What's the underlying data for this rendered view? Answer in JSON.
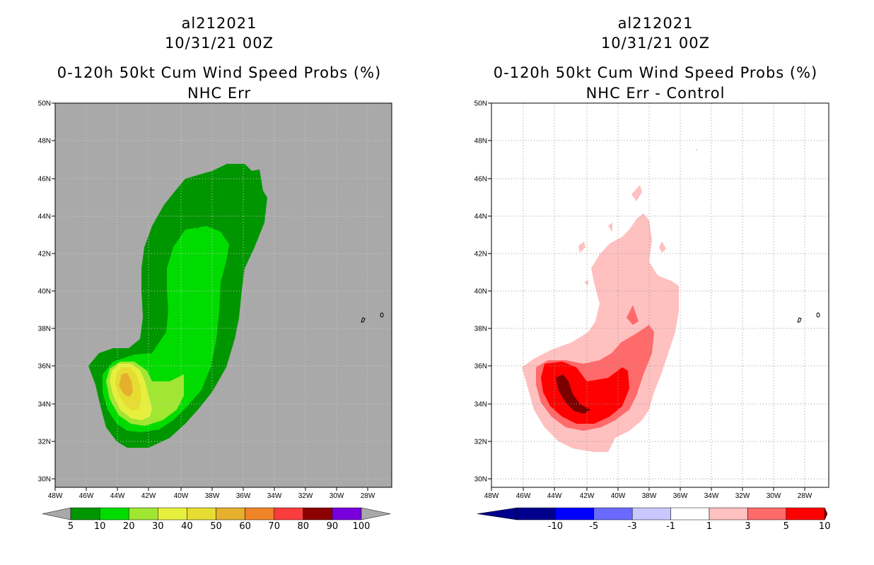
{
  "chart_data": [
    {
      "type": "filled-contour-map",
      "title_lines": [
        "al212021",
        "10/31/21 00Z",
        "0-120h 50kt Cum Wind Speed Probs (%)",
        "NHC Err"
      ],
      "lon_ticks": [
        "48W",
        "46W",
        "44W",
        "42W",
        "40W",
        "38W",
        "36W",
        "34W",
        "32W",
        "30W",
        "28W"
      ],
      "lat_ticks": [
        "50N",
        "48N",
        "46N",
        "44N",
        "42N",
        "40N",
        "38N",
        "36N",
        "34N",
        "32N",
        "30N"
      ],
      "xlim": [
        -48,
        -26
      ],
      "ylim": [
        29.5,
        50
      ],
      "background": "#a9a9a9",
      "grid": true,
      "contour_levels": [
        "5",
        "10",
        "20",
        "30",
        "40",
        "50",
        "60",
        "70",
        "80",
        "90",
        "100"
      ],
      "colorbar_colors": [
        "#009600",
        "#00dc00",
        "#a0e632",
        "#e6f03c",
        "#e6dc32",
        "#e6af2d",
        "#f08228",
        "#fa3c3c",
        "#8c0000",
        "#7800dc",
        "#a9a9a9"
      ],
      "max_probability_region": {
        "lat": 35,
        "lon": -43.3,
        "value_range": "50-60"
      }
    },
    {
      "type": "filled-contour-map",
      "title_lines": [
        "al212021",
        "10/31/21 00Z",
        "0-120h 50kt Cum Wind Speed Probs (%)",
        "NHC Err - Control"
      ],
      "lon_ticks": [
        "48W",
        "46W",
        "44W",
        "42W",
        "40W",
        "38W",
        "36W",
        "34W",
        "32W",
        "30W",
        "28W"
      ],
      "lat_ticks": [
        "50N",
        "48N",
        "46N",
        "44N",
        "42N",
        "40N",
        "38N",
        "36N",
        "34N",
        "32N",
        "30N"
      ],
      "xlim": [
        -48,
        -26
      ],
      "ylim": [
        29.5,
        50
      ],
      "background": "#ffffff",
      "grid": true,
      "contour_levels": [
        "-10",
        "-5",
        "-3",
        "-1",
        "1",
        "3",
        "5",
        "10"
      ],
      "colorbar_colors": [
        "#00008c",
        "#0000ff",
        "#6a6aff",
        "#c8c8ff",
        "#ffffff",
        "#ffc0c0",
        "#ff6a6a",
        "#ff0000",
        "#7a0000"
      ],
      "max_difference_region": {
        "lat": 34.5,
        "lon": -43.5,
        "value_range": ">10"
      }
    }
  ]
}
